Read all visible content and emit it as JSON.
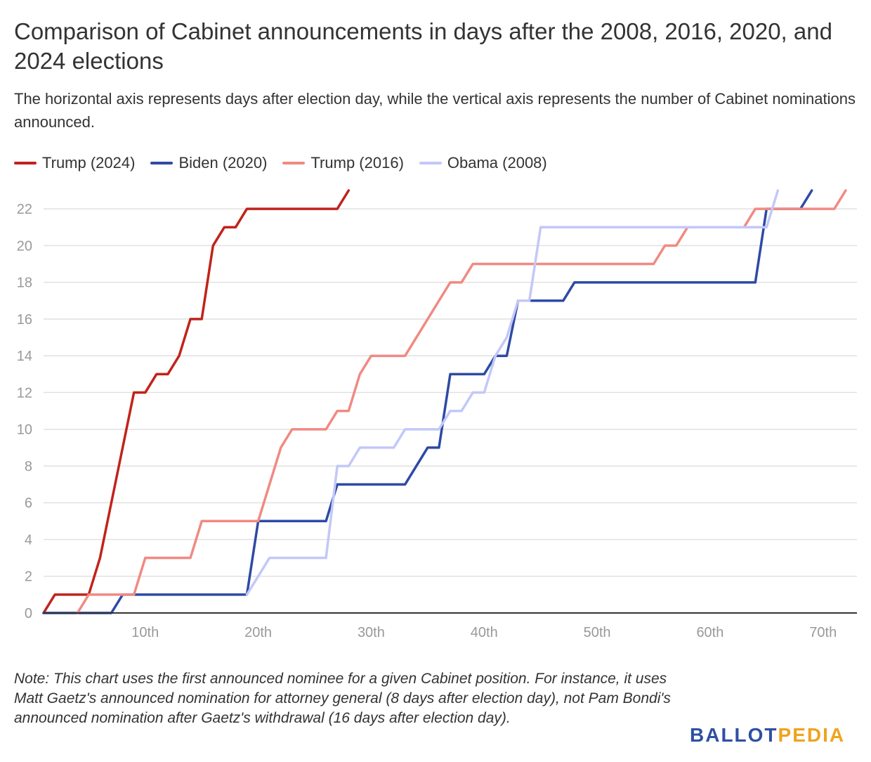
{
  "title": "Comparison of Cabinet announcements in days after the 2008, 2016, 2020, and 2024 elections",
  "subtitle": "The horizontal axis represents days after election day, while the vertical axis represents the number of Cabinet nominations announced.",
  "note": "Note: This chart uses the first announced nominee for a given Cabinet position. For instance, it uses Matt Gaetz's announced nomination for attorney general (8 days after election day), not Pam Bondi's announced nomination after Gaetz's withdrawal (16 days after election day).",
  "logo": {
    "part1": "BALLOT",
    "part2": "PEDIA"
  },
  "colors": {
    "trump2024": "#c0231b",
    "biden2020": "#2e4aa5",
    "trump2016": "#f08a82",
    "obama2008": "#c3c8f8",
    "grid": "#e1e1e1",
    "axis": "#333333",
    "tick": "#999999",
    "logo_blue": "#2f4fa3",
    "logo_gold": "#f0a31c"
  },
  "chart_data": {
    "type": "line",
    "xlabel": "",
    "ylabel": "",
    "xlim": [
      1,
      73
    ],
    "ylim": [
      0,
      23
    ],
    "x_ticks": [
      10,
      20,
      30,
      40,
      50,
      60,
      70
    ],
    "x_tick_labels": [
      "10th",
      "20th",
      "30th",
      "40th",
      "50th",
      "60th",
      "70th"
    ],
    "y_ticks": [
      0,
      2,
      4,
      6,
      8,
      10,
      12,
      14,
      16,
      18,
      20,
      22
    ],
    "grid": true,
    "legend_position": "top-left",
    "series": [
      {
        "name": "Trump (2024)",
        "color": "#c0231b",
        "points": [
          [
            1,
            0
          ],
          [
            2,
            1
          ],
          [
            5,
            1
          ],
          [
            6,
            3
          ],
          [
            7,
            6
          ],
          [
            8,
            9
          ],
          [
            9,
            12
          ],
          [
            10,
            12
          ],
          [
            11,
            13
          ],
          [
            12,
            13
          ],
          [
            13,
            14
          ],
          [
            14,
            16
          ],
          [
            15,
            16
          ],
          [
            16,
            20
          ],
          [
            17,
            21
          ],
          [
            18,
            21
          ],
          [
            19,
            22
          ],
          [
            20,
            22
          ],
          [
            27,
            22
          ],
          [
            28,
            23
          ]
        ]
      },
      {
        "name": "Biden (2020)",
        "color": "#2e4aa5",
        "points": [
          [
            1,
            0
          ],
          [
            7,
            0
          ],
          [
            8,
            1
          ],
          [
            19,
            1
          ],
          [
            20,
            5
          ],
          [
            26,
            5
          ],
          [
            27,
            7
          ],
          [
            33,
            7
          ],
          [
            35,
            9
          ],
          [
            36,
            9
          ],
          [
            37,
            13
          ],
          [
            40,
            13
          ],
          [
            41,
            14
          ],
          [
            42,
            14
          ],
          [
            43,
            17
          ],
          [
            47,
            17
          ],
          [
            48,
            18
          ],
          [
            64,
            18
          ],
          [
            65,
            22
          ],
          [
            68,
            22
          ],
          [
            69,
            23
          ]
        ]
      },
      {
        "name": "Trump (2016)",
        "color": "#f08a82",
        "points": [
          [
            4,
            0
          ],
          [
            5,
            1
          ],
          [
            9,
            1
          ],
          [
            10,
            3
          ],
          [
            14,
            3
          ],
          [
            15,
            5
          ],
          [
            20,
            5
          ],
          [
            22,
            9
          ],
          [
            23,
            10
          ],
          [
            26,
            10
          ],
          [
            27,
            11
          ],
          [
            28,
            11
          ],
          [
            29,
            13
          ],
          [
            30,
            14
          ],
          [
            33,
            14
          ],
          [
            37,
            18
          ],
          [
            38,
            18
          ],
          [
            39,
            19
          ],
          [
            55,
            19
          ],
          [
            56,
            20
          ],
          [
            57,
            20
          ],
          [
            58,
            21
          ],
          [
            63,
            21
          ],
          [
            64,
            22
          ],
          [
            71,
            22
          ],
          [
            72,
            23
          ]
        ]
      },
      {
        "name": "Obama (2008)",
        "color": "#c3c8f8",
        "points": [
          [
            19,
            1
          ],
          [
            21,
            3
          ],
          [
            26,
            3
          ],
          [
            27,
            8
          ],
          [
            28,
            8
          ],
          [
            29,
            9
          ],
          [
            32,
            9
          ],
          [
            33,
            10
          ],
          [
            36,
            10
          ],
          [
            37,
            11
          ],
          [
            38,
            11
          ],
          [
            39,
            12
          ],
          [
            40,
            12
          ],
          [
            41,
            14
          ],
          [
            42,
            15
          ],
          [
            43,
            17
          ],
          [
            44,
            17
          ],
          [
            45,
            21
          ],
          [
            65,
            21
          ],
          [
            66,
            23
          ]
        ]
      }
    ]
  }
}
